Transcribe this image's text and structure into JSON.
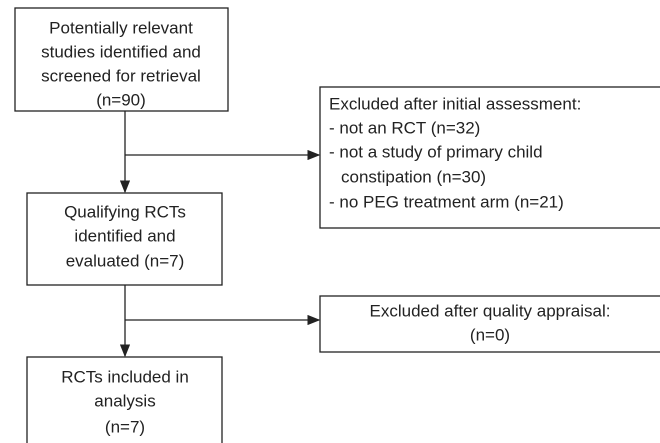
{
  "nodes": [
    {
      "lines": [
        "Potentially relevant",
        "studies identified and",
        "screened for retrieval",
        "(n=90)"
      ]
    },
    {
      "lines": [
        "Excluded after initial assessment:",
        "- not an RCT (n=32)",
        "- not a study of primary child",
        "constipation (n=30)",
        "- no PEG treatment arm (n=21)"
      ]
    },
    {
      "lines": [
        "Qualifying RCTs",
        "identified and",
        "evaluated (n=7)"
      ]
    },
    {
      "lines": [
        "Excluded after quality appraisal:",
        "(n=0)"
      ]
    },
    {
      "lines": [
        "RCTs included in",
        "analysis",
        "(n=7)"
      ]
    }
  ]
}
